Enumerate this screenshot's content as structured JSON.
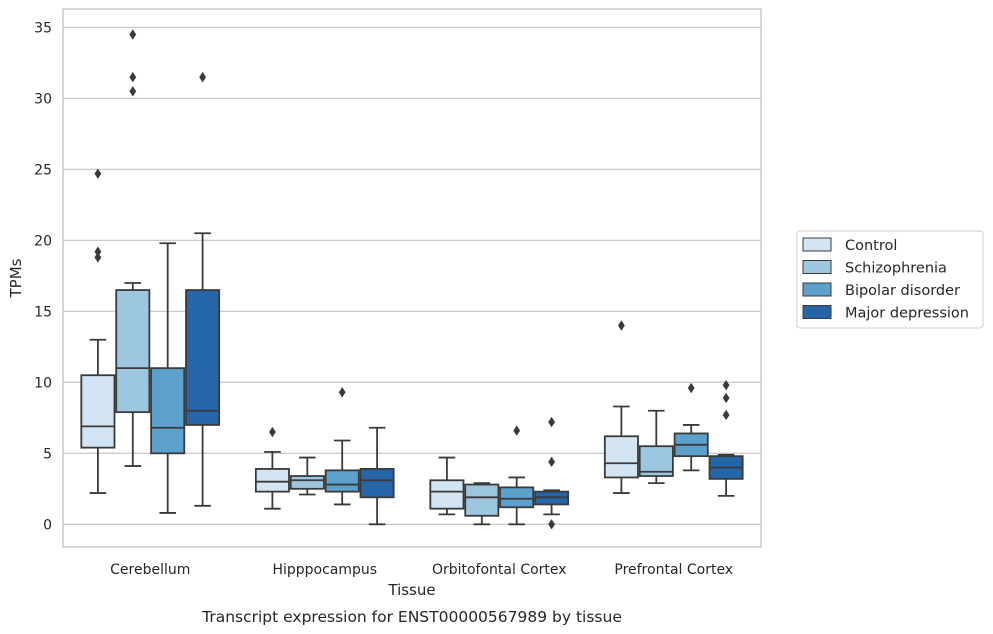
{
  "chart_data": {
    "type": "boxplot",
    "xlabel": "Tissue",
    "ylabel": "TPMs",
    "caption": "Transcript expression for ENST00000567989 by tissue",
    "ylim": [
      -1.6,
      36.3
    ],
    "yticks": [
      0,
      5,
      10,
      15,
      20,
      25,
      30,
      35
    ],
    "grid": "horizontal",
    "legend_position": "right",
    "categories": [
      "Cerebellum",
      "Hipppocampus",
      "Orbitofontal Cortex",
      "Prefrontal Cortex"
    ],
    "series": [
      {
        "name": "Control",
        "color": "#d3e4f3",
        "boxes": [
          {
            "whislo": 2.2,
            "q1": 5.4,
            "med": 6.9,
            "q3": 10.5,
            "whishi": 13.0,
            "fliers": [
              18.8,
              19.2,
              24.7
            ]
          },
          {
            "whislo": 1.1,
            "q1": 2.3,
            "med": 3.0,
            "q3": 3.9,
            "whishi": 5.1,
            "fliers": [
              6.5
            ]
          },
          {
            "whislo": 0.7,
            "q1": 1.1,
            "med": 2.3,
            "q3": 3.1,
            "whishi": 4.7,
            "fliers": []
          },
          {
            "whislo": 2.2,
            "q1": 3.3,
            "med": 4.3,
            "q3": 6.2,
            "whishi": 8.3,
            "fliers": [
              14.0
            ]
          }
        ]
      },
      {
        "name": "Schizophrenia",
        "color": "#9dc6e0",
        "boxes": [
          {
            "whislo": 4.1,
            "q1": 7.9,
            "med": 11.0,
            "q3": 16.5,
            "whishi": 17.0,
            "fliers": [
              30.5,
              31.5,
              34.5
            ]
          },
          {
            "whislo": 2.1,
            "q1": 2.5,
            "med": 3.1,
            "q3": 3.4,
            "whishi": 4.7,
            "fliers": []
          },
          {
            "whislo": 0.0,
            "q1": 0.6,
            "med": 1.9,
            "q3": 2.8,
            "whishi": 2.9,
            "fliers": []
          },
          {
            "whislo": 2.9,
            "q1": 3.4,
            "med": 3.7,
            "q3": 5.5,
            "whishi": 8.0,
            "fliers": []
          }
        ]
      },
      {
        "name": "Bipolar disorder",
        "color": "#5ca0cc",
        "boxes": [
          {
            "whislo": 0.8,
            "q1": 5.0,
            "med": 6.8,
            "q3": 11.0,
            "whishi": 19.8,
            "fliers": []
          },
          {
            "whislo": 1.4,
            "q1": 2.3,
            "med": 2.8,
            "q3": 3.8,
            "whishi": 5.9,
            "fliers": [
              9.3
            ]
          },
          {
            "whislo": 0.0,
            "q1": 1.2,
            "med": 1.8,
            "q3": 2.6,
            "whishi": 3.3,
            "fliers": [
              6.6
            ]
          },
          {
            "whislo": 3.8,
            "q1": 4.8,
            "med": 5.6,
            "q3": 6.4,
            "whishi": 7.0,
            "fliers": [
              9.6
            ]
          }
        ]
      },
      {
        "name": "Major depression",
        "color": "#2565a8",
        "boxes": [
          {
            "whislo": 1.3,
            "q1": 7.0,
            "med": 8.0,
            "q3": 16.5,
            "whishi": 20.5,
            "fliers": [
              31.5
            ]
          },
          {
            "whislo": 0.0,
            "q1": 1.9,
            "med": 3.1,
            "q3": 3.9,
            "whishi": 6.8,
            "fliers": []
          },
          {
            "whislo": 0.7,
            "q1": 1.4,
            "med": 1.9,
            "q3": 2.3,
            "whishi": 2.4,
            "fliers": [
              0.0,
              4.4,
              7.2
            ]
          },
          {
            "whislo": 2.0,
            "q1": 3.2,
            "med": 4.0,
            "q3": 4.8,
            "whishi": 4.9,
            "fliers": [
              7.7,
              8.9,
              9.8
            ]
          }
        ]
      }
    ]
  }
}
